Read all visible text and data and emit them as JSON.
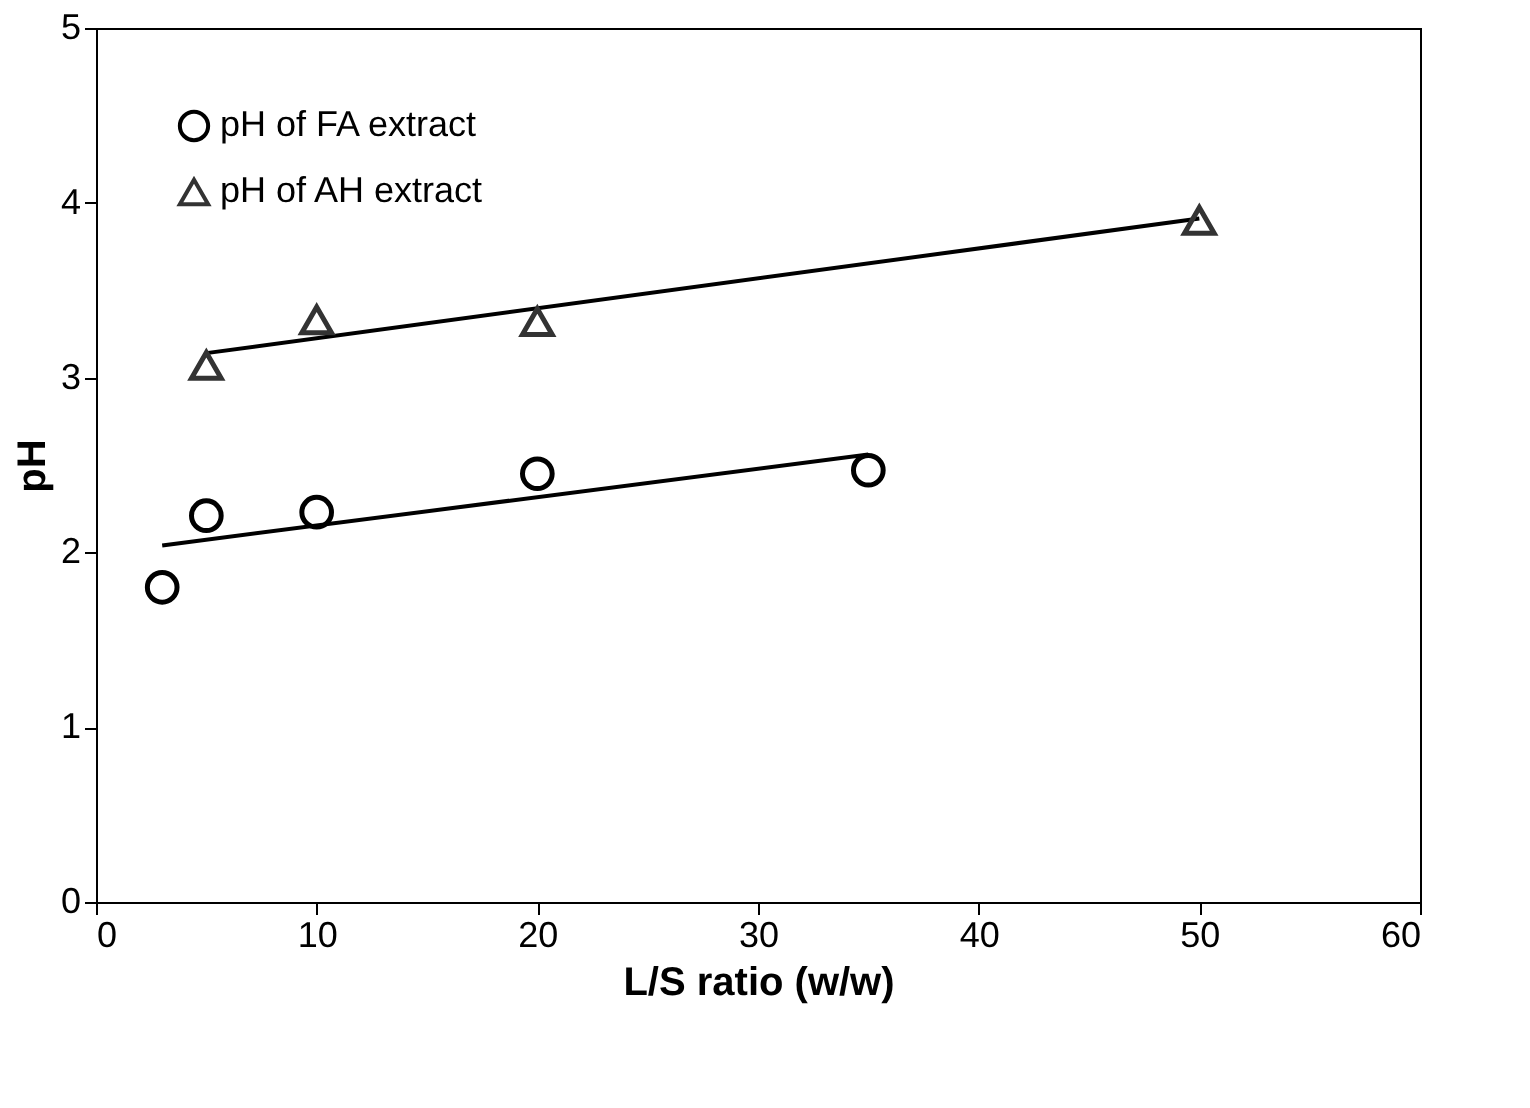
{
  "chart_data": {
    "type": "scatter",
    "xlabel": "L/S ratio (w/w)",
    "ylabel": "pH",
    "xlim": [
      0,
      60
    ],
    "xticks": [
      0,
      10,
      20,
      30,
      40,
      50,
      60
    ],
    "ylim": [
      0,
      5
    ],
    "yticks": [
      0,
      1,
      2,
      3,
      4,
      5
    ],
    "grid": false,
    "legend": "top left",
    "series": [
      {
        "name": "pH of FA extract",
        "color": "#000000",
        "marker": "circle",
        "x": [
          3,
          5,
          10,
          20,
          35
        ],
        "values": [
          1.8,
          2.21,
          2.23,
          2.45,
          2.47
        ]
      },
      {
        "name": "pH of AH extract",
        "color": "#333333",
        "marker": "triangle",
        "x": [
          5,
          10,
          20,
          50
        ],
        "values": [
          3.07,
          3.33,
          3.32,
          3.9
        ]
      },
      {
        "type": "line",
        "color": "#000000",
        "x": [
          3,
          35
        ],
        "values": [
          2.04,
          2.56
        ]
      },
      {
        "type": "line",
        "color": "#000000",
        "x": [
          5,
          50
        ],
        "values": [
          3.14,
          3.91
        ]
      }
    ]
  }
}
